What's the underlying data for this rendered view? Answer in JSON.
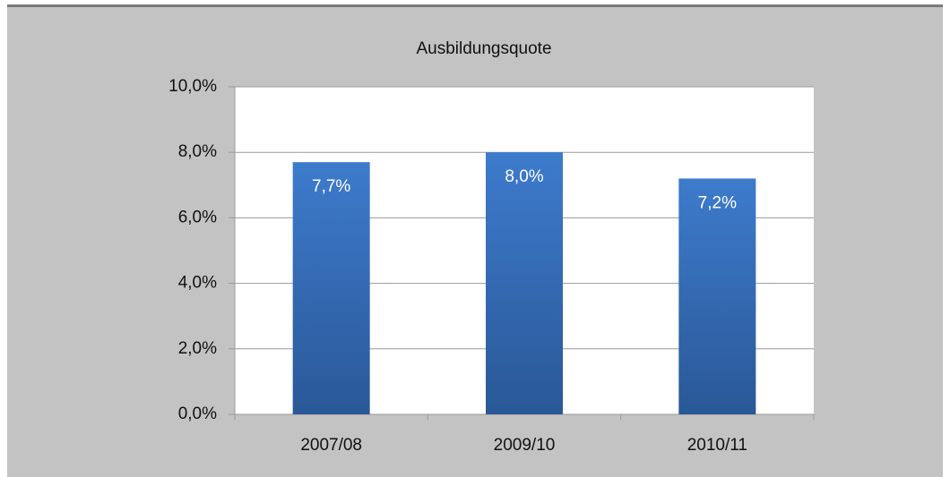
{
  "chart_data": {
    "type": "bar",
    "title": "Ausbildungsquote",
    "categories": [
      "2007/08",
      "2009/10",
      "2010/11"
    ],
    "values": [
      7.7,
      8.0,
      7.2
    ],
    "value_labels": [
      "7,7%",
      "8,0%",
      "7,2%"
    ],
    "color": "#3d7bcc",
    "ylim": [
      0,
      10
    ],
    "yticks": [
      {
        "value": 0,
        "label": "0,0%"
      },
      {
        "value": 2,
        "label": "2,0%"
      },
      {
        "value": 4,
        "label": "4,0%"
      },
      {
        "value": 6,
        "label": "6,0%"
      },
      {
        "value": 8,
        "label": "8,0%"
      },
      {
        "value": 10,
        "label": "10,0%"
      }
    ],
    "grid": true
  }
}
